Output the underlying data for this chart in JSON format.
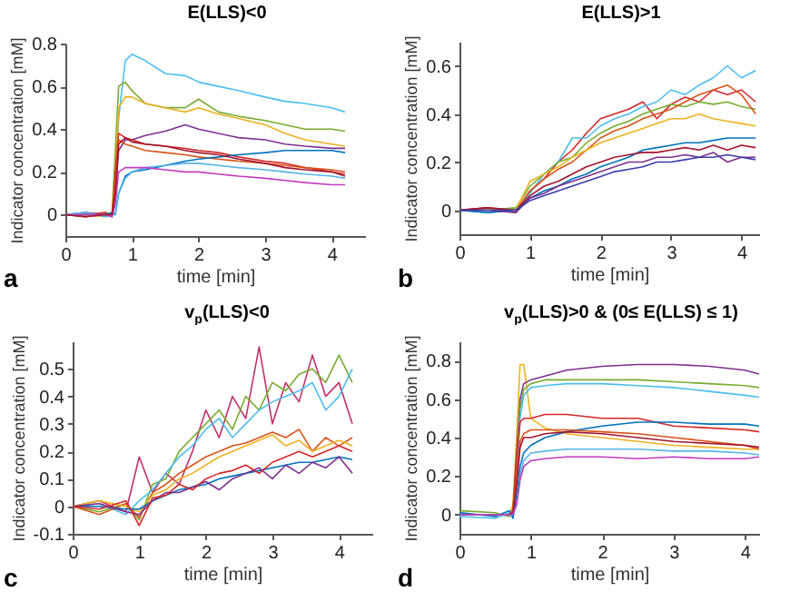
{
  "chart_data": [
    {
      "type": "line",
      "title": "E(LLS)<0",
      "xlabel": "time [min]",
      "ylabel": "Indicator concentration [mM]",
      "annotations": [
        "a"
      ],
      "xlim": [
        0,
        4.5
      ],
      "xticks": [
        0,
        1,
        2,
        3,
        4
      ],
      "ylim": [
        -0.1,
        0.8
      ],
      "yticks": [
        0,
        0.2,
        0.4,
        0.6,
        0.8
      ],
      "x": [
        0,
        0.3,
        0.6,
        0.7,
        0.75,
        0.8,
        0.9,
        1.0,
        1.2,
        1.5,
        1.8,
        2.0,
        2.3,
        2.6,
        3.0,
        3.3,
        3.6,
        4.0,
        4.2
      ],
      "series": [
        {
          "color": "#4dbeee",
          "values": [
            0,
            0.01,
            0,
            -0.01,
            0.1,
            0.45,
            0.72,
            0.75,
            0.72,
            0.66,
            0.65,
            0.62,
            0.6,
            0.58,
            0.55,
            0.53,
            0.52,
            0.5,
            0.48
          ]
        },
        {
          "color": "#77ac30",
          "values": [
            0,
            -0.01,
            0.01,
            0,
            0.3,
            0.6,
            0.62,
            0.58,
            0.52,
            0.5,
            0.5,
            0.54,
            0.48,
            0.46,
            0.44,
            0.42,
            0.4,
            0.4,
            0.39
          ]
        },
        {
          "color": "#edb120",
          "values": [
            0,
            0,
            -0.01,
            0,
            0.2,
            0.5,
            0.55,
            0.55,
            0.52,
            0.5,
            0.48,
            0.5,
            0.47,
            0.45,
            0.42,
            0.38,
            0.35,
            0.33,
            0.32
          ]
        },
        {
          "color": "#7e2f8e",
          "values": [
            0,
            0.01,
            0,
            0,
            0.1,
            0.3,
            0.35,
            0.35,
            0.37,
            0.39,
            0.42,
            0.4,
            0.38,
            0.36,
            0.35,
            0.33,
            0.32,
            0.31,
            0.31
          ]
        },
        {
          "color": "#d62728",
          "values": [
            0,
            0,
            0.01,
            -0.01,
            0.2,
            0.38,
            0.36,
            0.35,
            0.33,
            0.32,
            0.31,
            0.3,
            0.29,
            0.27,
            0.25,
            0.24,
            0.22,
            0.2,
            0.19
          ]
        },
        {
          "color": "#d95319",
          "values": [
            0,
            -0.01,
            0,
            0,
            0.15,
            0.35,
            0.33,
            0.32,
            0.3,
            0.29,
            0.28,
            0.27,
            0.26,
            0.25,
            0.24,
            0.23,
            0.22,
            0.21,
            0.2
          ]
        },
        {
          "color": "#0072bd",
          "values": [
            0,
            0,
            0,
            0.01,
            0,
            0.1,
            0.18,
            0.2,
            0.21,
            0.23,
            0.25,
            0.26,
            0.27,
            0.28,
            0.29,
            0.3,
            0.3,
            0.3,
            0.29
          ]
        },
        {
          "color": "#56b4e9",
          "values": [
            0,
            0.01,
            -0.01,
            0,
            0,
            0.1,
            0.17,
            0.2,
            0.22,
            0.23,
            0.24,
            0.24,
            0.23,
            0.22,
            0.21,
            0.2,
            0.19,
            0.18,
            0.17
          ]
        },
        {
          "color": "#c03cc0",
          "values": [
            0,
            0,
            0,
            -0.01,
            0.05,
            0.2,
            0.22,
            0.22,
            0.22,
            0.21,
            0.2,
            0.2,
            0.19,
            0.18,
            0.17,
            0.16,
            0.15,
            0.14,
            0.14
          ]
        },
        {
          "color": "#a2142f",
          "values": [
            0,
            -0.01,
            0,
            0,
            0.1,
            0.33,
            0.36,
            0.34,
            0.33,
            0.32,
            0.3,
            0.29,
            0.28,
            0.26,
            0.24,
            0.22,
            0.21,
            0.2,
            0.18
          ]
        }
      ]
    },
    {
      "type": "line",
      "title": "E(LLS)>1",
      "xlabel": "time [min]",
      "ylabel": "Indicator concentration [mM]",
      "annotations": [
        "b"
      ],
      "xlim": [
        0,
        4.25
      ],
      "xticks": [
        0,
        1,
        2,
        3,
        4
      ],
      "ylim": [
        -0.1,
        0.7
      ],
      "yticks": [
        0,
        0.2,
        0.4,
        0.6
      ],
      "x": [
        0,
        0.4,
        0.8,
        1.0,
        1.2,
        1.4,
        1.6,
        1.8,
        2.0,
        2.2,
        2.4,
        2.6,
        2.8,
        3.0,
        3.2,
        3.4,
        3.6,
        3.8,
        4.0,
        4.2
      ],
      "series": [
        {
          "color": "#d62728",
          "values": [
            0,
            0.01,
            -0.01,
            0.08,
            0.13,
            0.2,
            0.25,
            0.32,
            0.38,
            0.4,
            0.42,
            0.45,
            0.38,
            0.44,
            0.47,
            0.45,
            0.5,
            0.48,
            0.5,
            0.45
          ]
        },
        {
          "color": "#4dbeee",
          "values": [
            0,
            -0.01,
            0,
            0.07,
            0.15,
            0.2,
            0.3,
            0.3,
            0.35,
            0.38,
            0.4,
            0.43,
            0.45,
            0.5,
            0.48,
            0.52,
            0.55,
            0.6,
            0.55,
            0.58
          ]
        },
        {
          "color": "#77ac30",
          "values": [
            0,
            0,
            0.01,
            0.1,
            0.15,
            0.2,
            0.22,
            0.28,
            0.32,
            0.35,
            0.37,
            0.4,
            0.42,
            0.44,
            0.43,
            0.45,
            0.44,
            0.45,
            0.43,
            0.42
          ]
        },
        {
          "color": "#d95319",
          "values": [
            0,
            0.01,
            0,
            0.08,
            0.13,
            0.17,
            0.2,
            0.25,
            0.3,
            0.33,
            0.35,
            0.38,
            0.4,
            0.42,
            0.45,
            0.48,
            0.5,
            0.52,
            0.48,
            0.4
          ]
        },
        {
          "color": "#edb120",
          "values": [
            0,
            0,
            0,
            0.12,
            0.15,
            0.18,
            0.22,
            0.25,
            0.28,
            0.3,
            0.32,
            0.34,
            0.36,
            0.38,
            0.38,
            0.4,
            0.38,
            0.37,
            0.36,
            0.35
          ]
        },
        {
          "color": "#0072bd",
          "values": [
            0,
            -0.01,
            0,
            0.05,
            0.08,
            0.1,
            0.13,
            0.15,
            0.18,
            0.2,
            0.22,
            0.25,
            0.26,
            0.27,
            0.28,
            0.28,
            0.29,
            0.3,
            0.3,
            0.3
          ]
        },
        {
          "color": "#7e2f8e",
          "values": [
            0,
            0,
            -0.01,
            0.05,
            0.07,
            0.1,
            0.12,
            0.14,
            0.16,
            0.18,
            0.2,
            0.2,
            0.22,
            0.22,
            0.23,
            0.22,
            0.24,
            0.2,
            0.22,
            0.22
          ]
        },
        {
          "color": "#a2142f",
          "values": [
            0,
            0.01,
            0,
            0.06,
            0.1,
            0.12,
            0.15,
            0.18,
            0.2,
            0.22,
            0.23,
            0.24,
            0.24,
            0.25,
            0.26,
            0.25,
            0.27,
            0.25,
            0.27,
            0.26
          ]
        },
        {
          "color": "#3b3bb0",
          "values": [
            0,
            0,
            0,
            0.04,
            0.06,
            0.08,
            0.1,
            0.12,
            0.14,
            0.16,
            0.17,
            0.18,
            0.2,
            0.2,
            0.21,
            0.22,
            0.22,
            0.23,
            0.22,
            0.21
          ]
        }
      ]
    },
    {
      "type": "line",
      "title": "v$_{p}$(LLS)<0",
      "xlabel": "time [min]",
      "ylabel": "Indicator concentration [mM]",
      "annotations": [
        "c"
      ],
      "xlim": [
        0,
        4.5
      ],
      "xticks": [
        0,
        1,
        2,
        3,
        4
      ],
      "ylim": [
        -0.1,
        0.6
      ],
      "yticks": [
        -0.1,
        0,
        0.1,
        0.2,
        0.3,
        0.4,
        0.5
      ],
      "x": [
        0,
        0.4,
        0.8,
        1.0,
        1.2,
        1.4,
        1.6,
        1.8,
        2.0,
        2.2,
        2.4,
        2.6,
        2.8,
        3.0,
        3.2,
        3.4,
        3.6,
        3.8,
        4.0,
        4.2
      ],
      "series": [
        {
          "color": "#c0306a",
          "values": [
            0,
            0.02,
            -0.02,
            0.18,
            0.05,
            0.12,
            0.08,
            0.2,
            0.35,
            0.25,
            0.4,
            0.32,
            0.58,
            0.3,
            0.45,
            0.38,
            0.55,
            0.4,
            0.45,
            0.3
          ]
        },
        {
          "color": "#77ac30",
          "values": [
            0,
            -0.02,
            0.01,
            -0.05,
            0.08,
            0.1,
            0.2,
            0.25,
            0.3,
            0.35,
            0.28,
            0.4,
            0.35,
            0.45,
            0.42,
            0.48,
            0.5,
            0.45,
            0.55,
            0.45
          ]
        },
        {
          "color": "#4dbeee",
          "values": [
            0,
            0.01,
            -0.03,
            0.02,
            0.06,
            0.12,
            0.18,
            0.22,
            0.28,
            0.32,
            0.25,
            0.3,
            0.35,
            0.38,
            0.4,
            0.42,
            0.45,
            0.35,
            0.4,
            0.5
          ]
        },
        {
          "color": "#d95319",
          "values": [
            0,
            -0.03,
            0.01,
            -0.04,
            0.05,
            0.08,
            0.12,
            0.15,
            0.18,
            0.2,
            0.22,
            0.23,
            0.25,
            0.27,
            0.25,
            0.28,
            0.2,
            0.25,
            0.22,
            0.25
          ]
        },
        {
          "color": "#edb120",
          "values": [
            0,
            0.02,
            0,
            -0.02,
            0.04,
            0.06,
            0.1,
            0.12,
            0.15,
            0.18,
            0.2,
            0.22,
            0.24,
            0.26,
            0.22,
            0.24,
            0.2,
            0.22,
            0.24,
            0.22
          ]
        },
        {
          "color": "#0072bd",
          "values": [
            0,
            0,
            -0.01,
            -0.01,
            0.02,
            0.04,
            0.06,
            0.07,
            0.08,
            0.1,
            0.11,
            0.12,
            0.13,
            0.14,
            0.15,
            0.16,
            0.16,
            0.17,
            0.18,
            0.17
          ]
        },
        {
          "color": "#7e2f8e",
          "values": [
            0,
            0.01,
            -0.02,
            -0.03,
            0.02,
            0.05,
            0.05,
            0.07,
            0.09,
            0.06,
            0.1,
            0.12,
            0.14,
            0.1,
            0.15,
            0.12,
            0.16,
            0.14,
            0.18,
            0.12
          ]
        },
        {
          "color": "#d62728",
          "values": [
            0,
            -0.01,
            0.02,
            -0.07,
            0.03,
            0.04,
            0.08,
            0.06,
            0.1,
            0.12,
            0.13,
            0.15,
            0.12,
            0.16,
            0.18,
            0.2,
            0.18,
            0.2,
            0.22,
            0.2
          ]
        }
      ]
    },
    {
      "type": "line",
      "title": "v$_{p}$(LLS)>0 & (0≤ E(LLS) ≤ 1)",
      "xlabel": "time [min]",
      "ylabel": "Indicator concentration [mM]",
      "annotations": [
        "d"
      ],
      "xlim": [
        0,
        4.2
      ],
      "xticks": [
        0,
        1,
        2,
        3,
        4
      ],
      "ylim": [
        -0.1,
        0.9
      ],
      "yticks": [
        0,
        0.2,
        0.4,
        0.6,
        0.8
      ],
      "x": [
        0,
        0.5,
        0.7,
        0.75,
        0.8,
        0.85,
        0.9,
        1.0,
        1.2,
        1.5,
        2.0,
        2.5,
        3.0,
        3.5,
        4.0,
        4.2
      ],
      "series": [
        {
          "color": "#edb120",
          "values": [
            0,
            0,
            0,
            0.05,
            0.4,
            0.78,
            0.78,
            0.5,
            0.45,
            0.42,
            0.4,
            0.38,
            0.36,
            0.35,
            0.34,
            0.34
          ]
        },
        {
          "color": "#7e2f8e",
          "values": [
            0,
            0,
            0,
            0.02,
            0.3,
            0.6,
            0.68,
            0.7,
            0.72,
            0.75,
            0.77,
            0.78,
            0.78,
            0.77,
            0.75,
            0.73
          ]
        },
        {
          "color": "#77ac30",
          "values": [
            0.02,
            0.01,
            -0.01,
            0.03,
            0.25,
            0.55,
            0.65,
            0.68,
            0.7,
            0.7,
            0.7,
            0.7,
            0.69,
            0.68,
            0.67,
            0.66
          ]
        },
        {
          "color": "#4dbeee",
          "values": [
            -0.01,
            -0.02,
            0.01,
            -0.01,
            0.2,
            0.5,
            0.62,
            0.66,
            0.67,
            0.68,
            0.68,
            0.67,
            0.66,
            0.64,
            0.62,
            0.61
          ]
        },
        {
          "color": "#d62728",
          "values": [
            0,
            0,
            0,
            0.02,
            0.3,
            0.48,
            0.5,
            0.5,
            0.52,
            0.52,
            0.5,
            0.5,
            0.46,
            0.45,
            0.44,
            0.43
          ]
        },
        {
          "color": "#0072bd",
          "values": [
            0.01,
            -0.01,
            0.02,
            -0.02,
            0.1,
            0.25,
            0.32,
            0.36,
            0.4,
            0.43,
            0.46,
            0.48,
            0.48,
            0.47,
            0.47,
            0.46
          ]
        },
        {
          "color": "#d95319",
          "values": [
            0,
            0,
            0,
            0.02,
            0.2,
            0.38,
            0.42,
            0.44,
            0.44,
            0.44,
            0.43,
            0.42,
            0.4,
            0.38,
            0.36,
            0.34
          ]
        },
        {
          "color": "#a2142f",
          "values": [
            0,
            0,
            0,
            0.01,
            0.15,
            0.35,
            0.4,
            0.4,
            0.42,
            0.43,
            0.42,
            0.4,
            0.38,
            0.37,
            0.36,
            0.35
          ]
        },
        {
          "color": "#56b4e9",
          "values": [
            0,
            0,
            0,
            0,
            0.05,
            0.2,
            0.28,
            0.32,
            0.33,
            0.34,
            0.34,
            0.34,
            0.33,
            0.33,
            0.32,
            0.31
          ]
        },
        {
          "color": "#c03cc0",
          "values": [
            0,
            0,
            0,
            0,
            0.05,
            0.18,
            0.25,
            0.28,
            0.29,
            0.3,
            0.3,
            0.29,
            0.3,
            0.29,
            0.29,
            0.3
          ]
        }
      ]
    }
  ]
}
